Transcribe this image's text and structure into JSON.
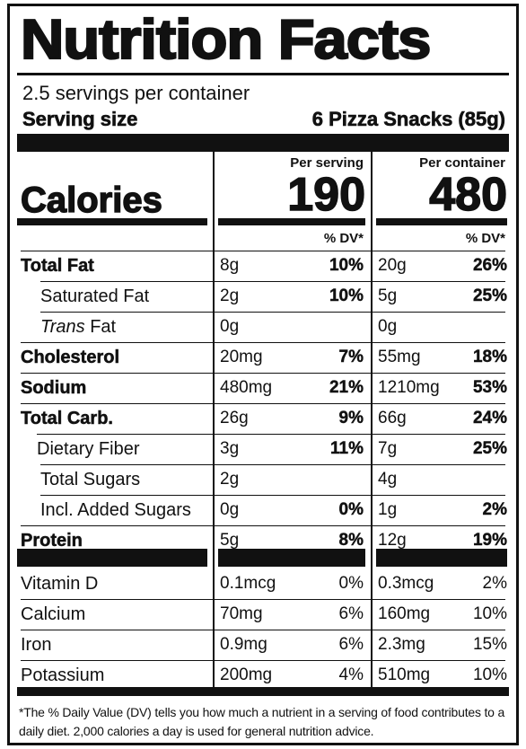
{
  "title": "Nutrition Facts",
  "servings_per_container": "2.5 servings per container",
  "serving_size_label": "Serving size",
  "serving_size_value": "6 Pizza Snacks (85g)",
  "columns": {
    "per_serving": "Per serving",
    "per_container": "Per container",
    "dv": "% DV*"
  },
  "calories": {
    "label": "Calories",
    "per_serving": "190",
    "per_container": "480"
  },
  "nutrients": [
    {
      "name": "Total Fat",
      "name_italic": "",
      "serving_amount": "8g",
      "serving_dv": "10%",
      "container_amount": "20g",
      "container_dv": "26%"
    },
    {
      "name": "Saturated Fat",
      "name_italic": "",
      "serving_amount": "2g",
      "serving_dv": "10%",
      "container_amount": "5g",
      "container_dv": "25%"
    },
    {
      "name": " Fat",
      "name_italic": "Trans",
      "serving_amount": "0g",
      "serving_dv": "",
      "container_amount": "0g",
      "container_dv": ""
    },
    {
      "name": "Cholesterol",
      "name_italic": "",
      "serving_amount": "20mg",
      "serving_dv": "7%",
      "container_amount": "55mg",
      "container_dv": "18%"
    },
    {
      "name": "Sodium",
      "name_italic": "",
      "serving_amount": "480mg",
      "serving_dv": "21%",
      "container_amount": "1210mg",
      "container_dv": "53%"
    },
    {
      "name": "Total Carb.",
      "name_italic": "",
      "serving_amount": "26g",
      "serving_dv": "9%",
      "container_amount": "66g",
      "container_dv": "24%"
    },
    {
      "name": "Dietary Fiber",
      "name_italic": "",
      "serving_amount": "3g",
      "serving_dv": "11%",
      "container_amount": "7g",
      "container_dv": "25%"
    },
    {
      "name": "Total Sugars",
      "name_italic": "",
      "serving_amount": "2g",
      "serving_dv": "",
      "container_amount": "4g",
      "container_dv": ""
    },
    {
      "name": "Incl. Added Sugars",
      "name_italic": "",
      "serving_amount": "0g",
      "serving_dv": "0%",
      "container_amount": "1g",
      "container_dv": "2%"
    },
    {
      "name": "Protein",
      "name_italic": "",
      "serving_amount": "5g",
      "serving_dv": "8%",
      "container_amount": "12g",
      "container_dv": "19%"
    }
  ],
  "vitamins": [
    {
      "name": "Vitamin D",
      "serving_amount": "0.1mcg",
      "serving_dv": "0%",
      "container_amount": "0.3mcg",
      "container_dv": "2%"
    },
    {
      "name": "Calcium",
      "serving_amount": "70mg",
      "serving_dv": "6%",
      "container_amount": "160mg",
      "container_dv": "10%"
    },
    {
      "name": "Iron",
      "serving_amount": "0.9mg",
      "serving_dv": "6%",
      "container_amount": "2.3mg",
      "container_dv": "15%"
    },
    {
      "name": "Potassium",
      "serving_amount": "200mg",
      "serving_dv": "4%",
      "container_amount": "510mg",
      "container_dv": "10%"
    }
  ],
  "footnote": "*The % Daily Value (DV) tells you how much a nutrient in a serving of food contributes to a daily diet. 2,000 calories a day is used for general nutrition advice."
}
